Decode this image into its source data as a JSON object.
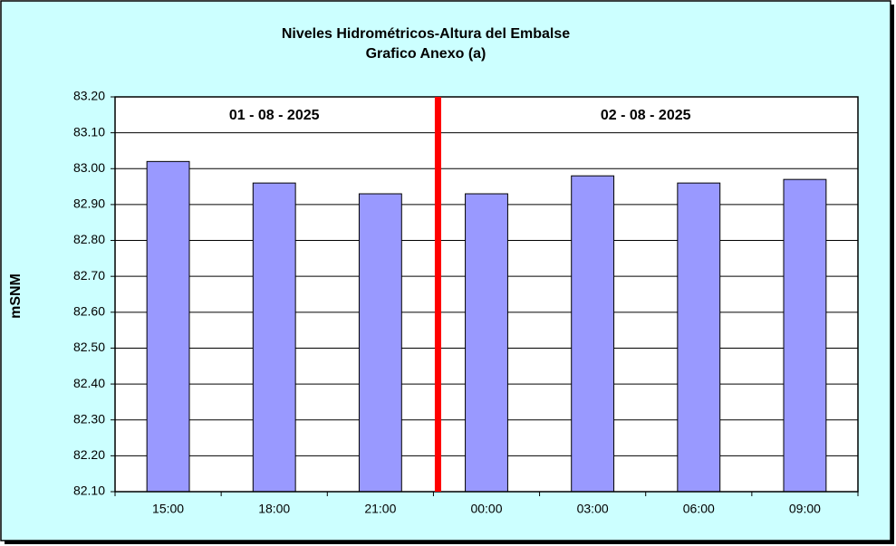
{
  "chart_data": {
    "type": "bar",
    "title": "Niveles Hidrométricos-Altura del Embalse",
    "subtitle": "Grafico Anexo (a)",
    "y_label": "mSNM",
    "annotations": [
      "01 - 08 - 2025",
      "02 - 08 - 2025"
    ],
    "categories": [
      "15:00",
      "18:00",
      "21:00",
      "00:00",
      "03:00",
      "06:00",
      "09:00"
    ],
    "values": [
      83.02,
      82.96,
      82.93,
      82.93,
      82.98,
      82.96,
      82.97
    ],
    "color": "#9999ff",
    "ylim": [
      82.1,
      83.2
    ],
    "yticks": [
      {
        "value": 82.1,
        "label": "82.10"
      },
      {
        "value": 82.2,
        "label": "82.20"
      },
      {
        "value": 82.3,
        "label": "82.30"
      },
      {
        "value": 82.4,
        "label": "82.40"
      },
      {
        "value": 82.5,
        "label": "82.50"
      },
      {
        "value": 82.6,
        "label": "82.60"
      },
      {
        "value": 82.7,
        "label": "82.70"
      },
      {
        "value": 82.8,
        "label": "82.80"
      },
      {
        "value": 82.9,
        "label": "82.90"
      },
      {
        "value": 83.0,
        "label": "83.00"
      },
      {
        "value": 83.1,
        "label": "83.10"
      },
      {
        "value": 83.2,
        "label": "83.20"
      }
    ],
    "grid": true
  }
}
